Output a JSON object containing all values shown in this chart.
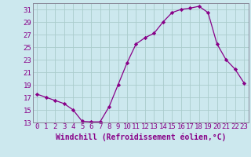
{
  "x": [
    0,
    1,
    2,
    3,
    4,
    5,
    6,
    7,
    8,
    9,
    10,
    11,
    12,
    13,
    14,
    15,
    16,
    17,
    18,
    19,
    20,
    21,
    22,
    23
  ],
  "y": [
    17.5,
    17.0,
    16.5,
    16.0,
    15.0,
    13.2,
    13.1,
    13.1,
    15.5,
    19.0,
    22.5,
    25.5,
    26.5,
    27.2,
    29.0,
    30.5,
    31.0,
    31.2,
    31.5,
    30.5,
    25.5,
    23.0,
    21.5,
    19.3
  ],
  "xlabel": "Windchill (Refroidissement éolien,°C)",
  "ylim": [
    13,
    32
  ],
  "xlim": [
    -0.5,
    23.5
  ],
  "yticks": [
    13,
    15,
    17,
    19,
    21,
    23,
    25,
    27,
    29,
    31
  ],
  "xticks": [
    0,
    1,
    2,
    3,
    4,
    5,
    6,
    7,
    8,
    9,
    10,
    11,
    12,
    13,
    14,
    15,
    16,
    17,
    18,
    19,
    20,
    21,
    22,
    23
  ],
  "line_color": "#880088",
  "marker_color": "#880088",
  "bg_color": "#cce8ee",
  "grid_color": "#aacccc",
  "xlabel_fontsize": 7.0,
  "tick_fontsize": 6.5,
  "spine_color": "#888899"
}
